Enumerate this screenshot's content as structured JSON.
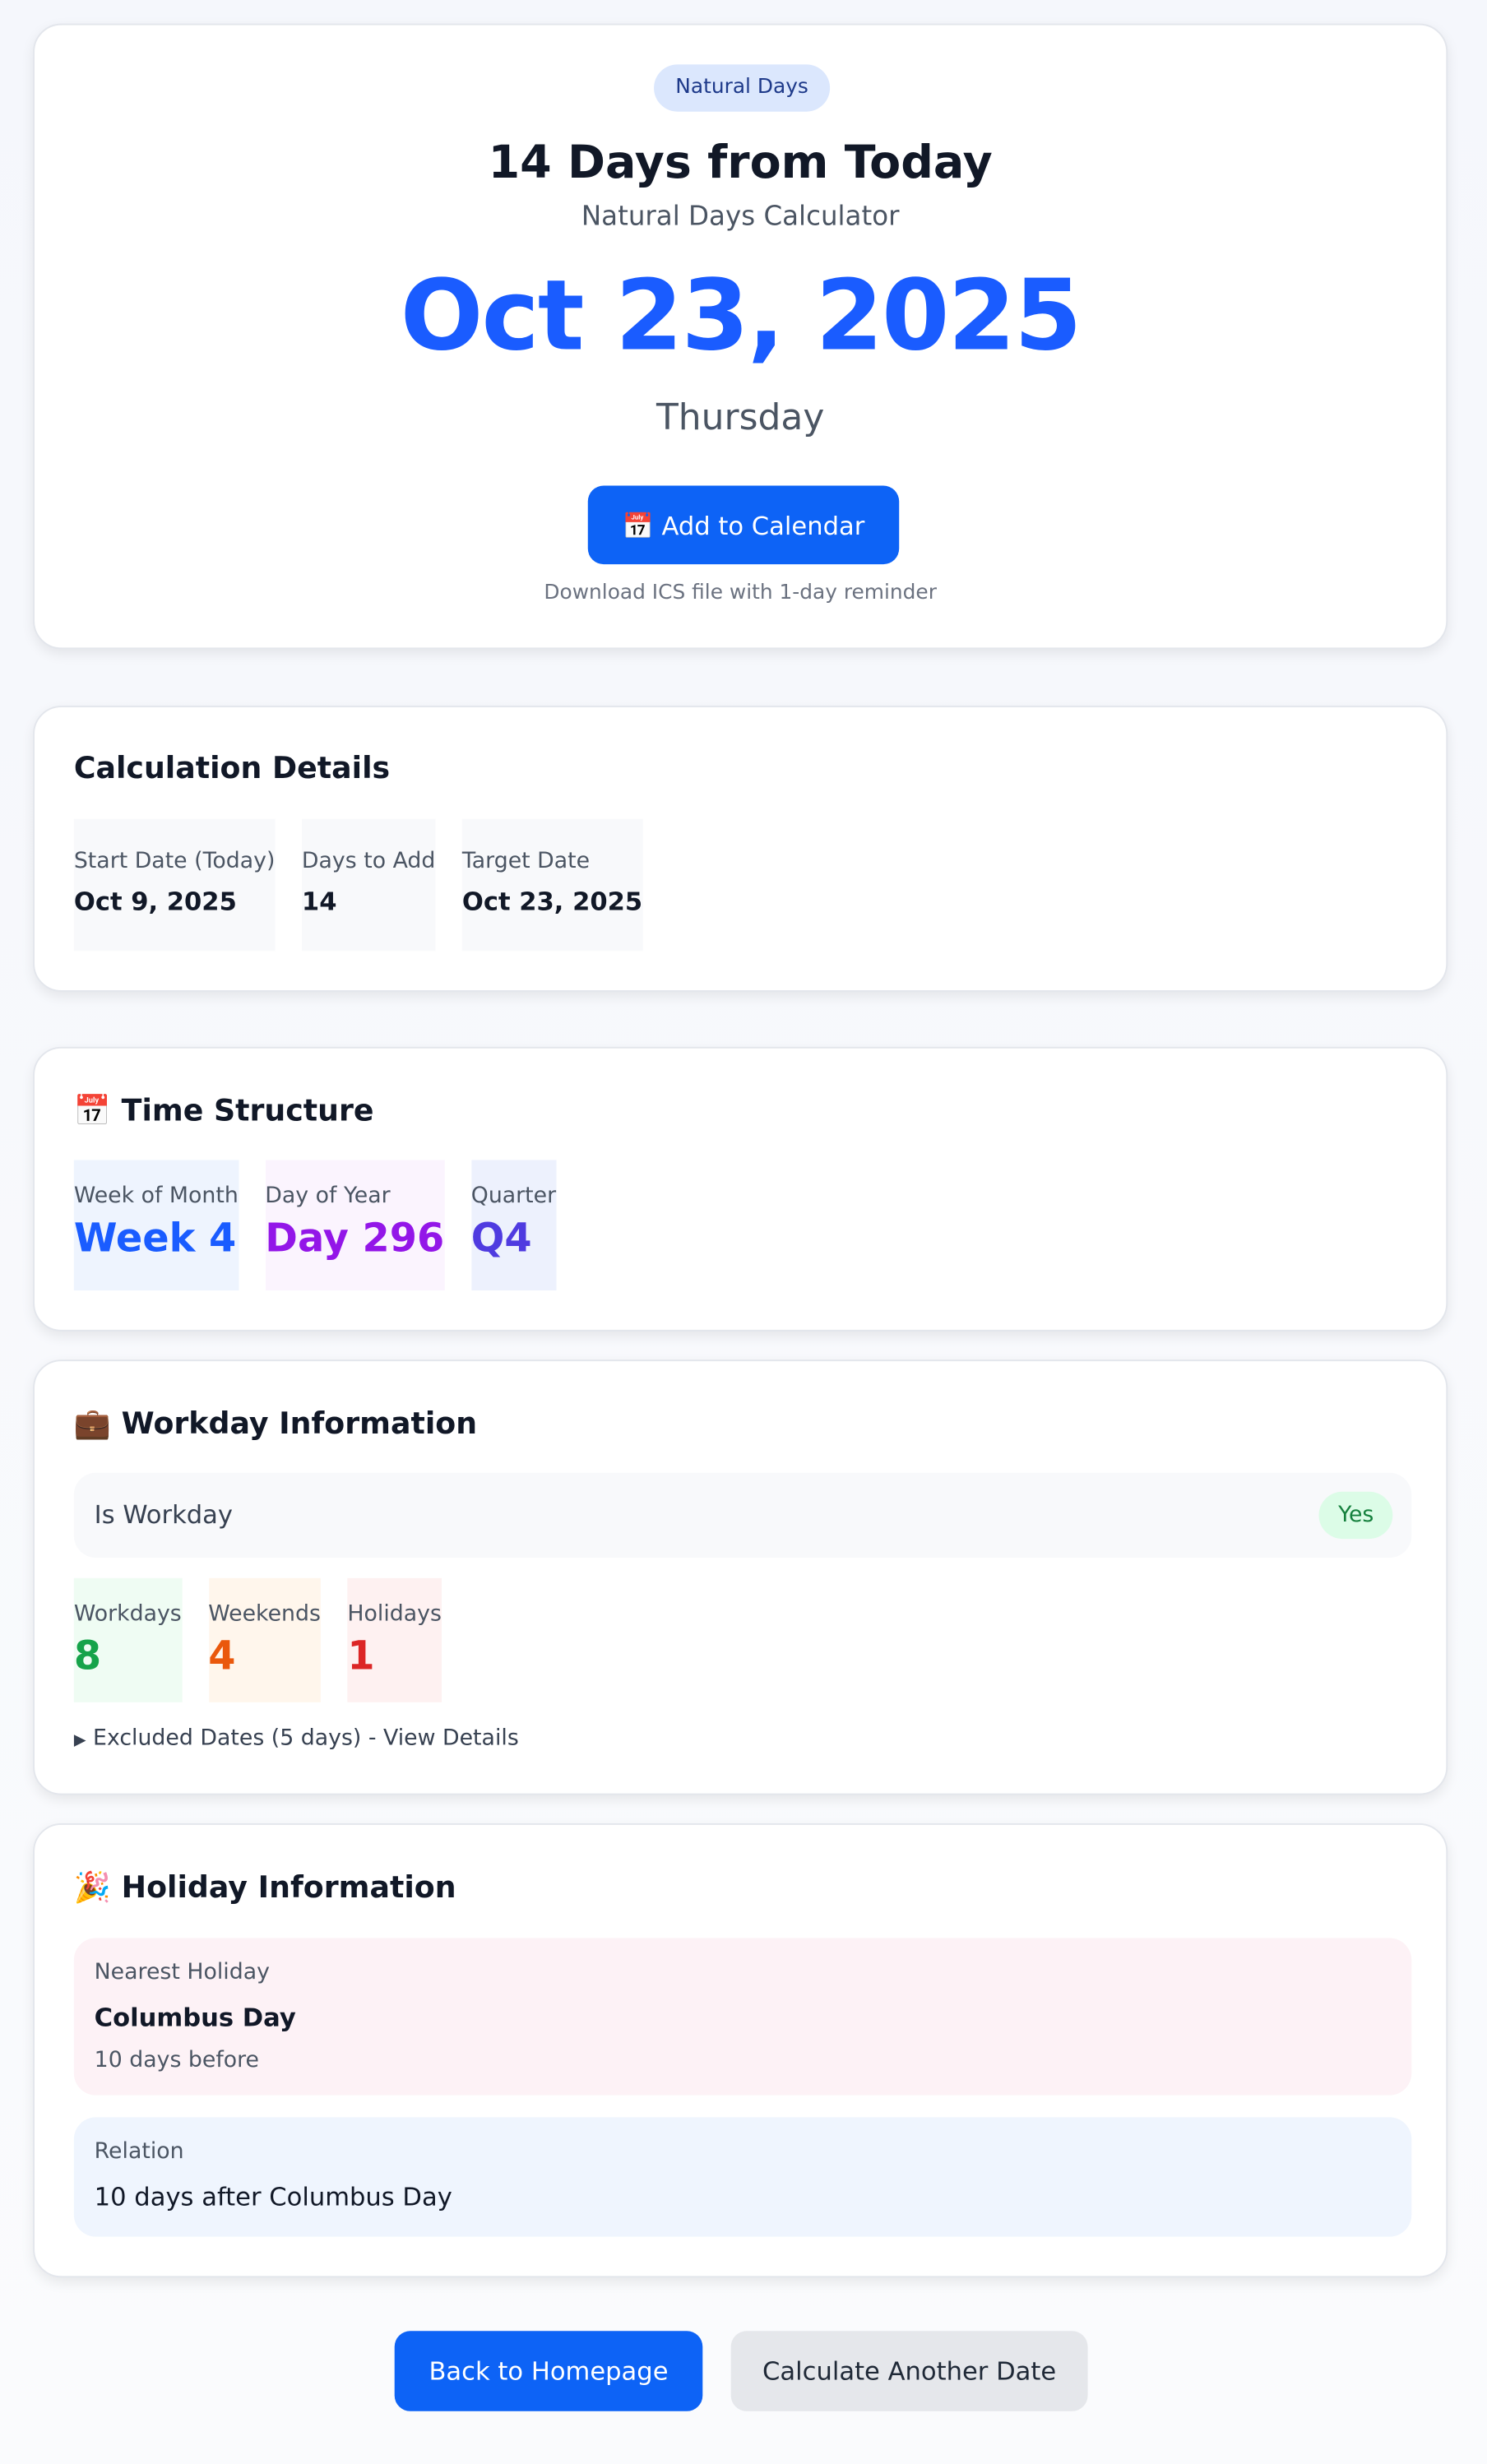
{
  "hero": {
    "badge": "Natural Days",
    "title": "14 Days from Today",
    "subtitle": "Natural Days Calculator",
    "date": "Oct 23, 2025",
    "weekday": "Thursday",
    "button": "📅 Add to Calendar",
    "note": "Download ICS file with 1-day reminder"
  },
  "details": {
    "heading": "Calculation Details",
    "items": [
      {
        "label": "Start Date (Today)",
        "value": "Oct 9, 2025"
      },
      {
        "label": "Days to Add",
        "value": "14"
      },
      {
        "label": "Target Date",
        "value": "Oct 23, 2025"
      }
    ]
  },
  "time": {
    "heading": "📅 Time Structure",
    "items": [
      {
        "label": "Week of Month",
        "value": "Week 4"
      },
      {
        "label": "Day of Year",
        "value": "Day 296"
      },
      {
        "label": "Quarter",
        "value": "Q4"
      }
    ]
  },
  "workday": {
    "heading": "💼 Workday Information",
    "row_label": "Is Workday",
    "row_value": "Yes",
    "items": [
      {
        "label": "Workdays",
        "value": "8"
      },
      {
        "label": "Weekends",
        "value": "4"
      },
      {
        "label": "Holidays",
        "value": "1"
      }
    ],
    "excluded": "Excluded Dates (5 days) - View Details"
  },
  "holiday": {
    "heading": "🎉 Holiday Information",
    "nearest_label": "Nearest Holiday",
    "nearest_name": "Columbus Day",
    "nearest_note": "10 days before",
    "relation_label": "Relation",
    "relation_value": "10 days after Columbus Day"
  },
  "actions": {
    "back": "Back to Homepage",
    "again": "Calculate Another Date"
  }
}
